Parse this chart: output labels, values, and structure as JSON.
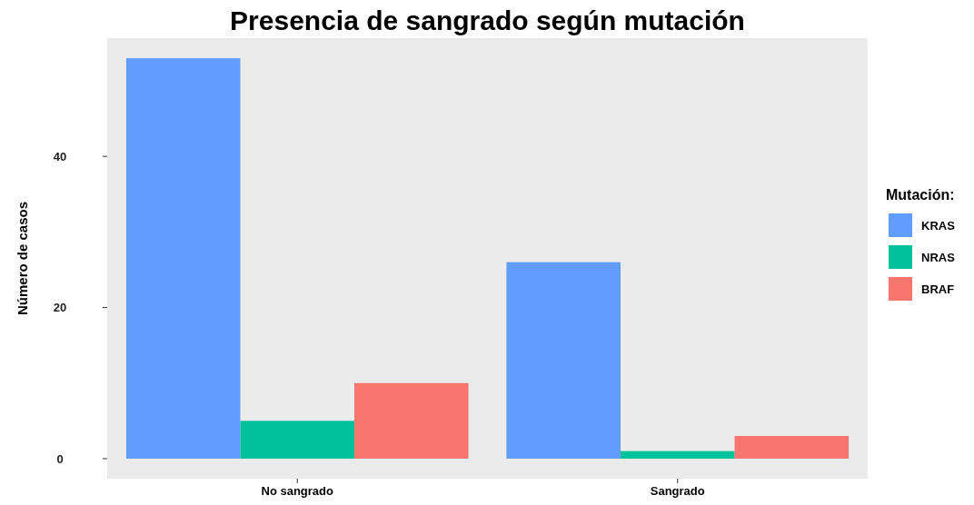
{
  "chart_data": {
    "type": "bar",
    "title": "Presencia de sangrado según mutación",
    "ylabel": "Número de casos",
    "legend_title": "Mutación:",
    "categories": [
      "No sangrado",
      "Sangrado"
    ],
    "series": [
      {
        "name": "KRAS",
        "color": "#619cff",
        "values": [
          53,
          26
        ]
      },
      {
        "name": "NRAS",
        "color": "#00c19a",
        "values": [
          5,
          1
        ]
      },
      {
        "name": "BRAF",
        "color": "#f8766d",
        "values": [
          10,
          3
        ]
      }
    ],
    "ylim": [
      -2.65,
      55.65
    ],
    "yticks": [
      0,
      20,
      40
    ],
    "grid": false,
    "legend": "right"
  }
}
